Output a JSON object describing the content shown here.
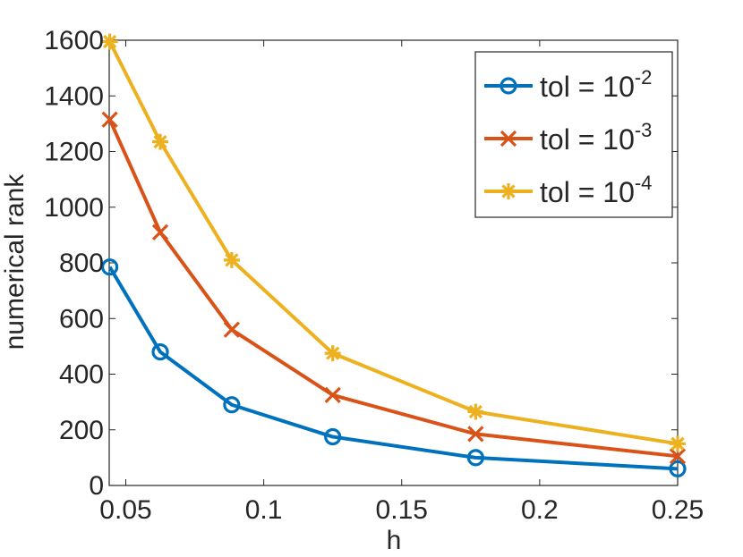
{
  "chart_data": {
    "type": "line",
    "title": "",
    "xlabel": "h",
    "ylabel": "numerical rank",
    "xlim": [
      0.044,
      0.25
    ],
    "ylim": [
      0,
      1600
    ],
    "xticks": [
      0.05,
      0.1,
      0.15,
      0.2,
      0.25
    ],
    "xtick_labels": [
      "0.05",
      "0.1",
      "0.15",
      "0.2",
      "0.25"
    ],
    "yticks": [
      0,
      200,
      400,
      600,
      800,
      1000,
      1200,
      1400,
      1600
    ],
    "ytick_labels": [
      "0",
      "200",
      "400",
      "600",
      "800",
      "1000",
      "1200",
      "1400",
      "1600"
    ],
    "grid": false,
    "legend_position": "top-right",
    "x": [
      0.0442,
      0.0625,
      0.0884,
      0.125,
      0.1768,
      0.25
    ],
    "series": [
      {
        "name": "tol = 10^-2",
        "legend_base": "tol = 10",
        "legend_exp": "-2",
        "marker": "circle",
        "color": "#0072BD",
        "values": [
          785,
          480,
          290,
          175,
          100,
          60
        ]
      },
      {
        "name": "tol = 10^-3",
        "legend_base": "tol = 10",
        "legend_exp": "-3",
        "marker": "x",
        "color": "#D95319",
        "values": [
          1315,
          910,
          560,
          325,
          185,
          105
        ]
      },
      {
        "name": "tol = 10^-4",
        "legend_base": "tol = 10",
        "legend_exp": "-4",
        "marker": "asterisk",
        "color": "#EDB120",
        "values": [
          1595,
          1235,
          810,
          475,
          265,
          150
        ]
      }
    ]
  }
}
